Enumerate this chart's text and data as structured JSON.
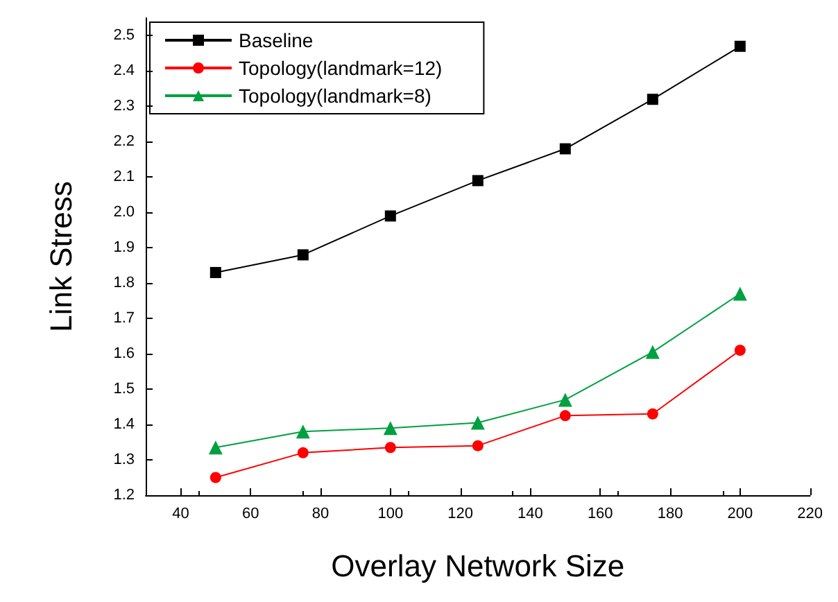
{
  "chart_data": {
    "type": "line",
    "xlabel": "Overlay Network Size",
    "ylabel": "Link Stress",
    "x": [
      50,
      75,
      100,
      125,
      150,
      175,
      200
    ],
    "series": [
      {
        "name": "Baseline",
        "color": "#000000",
        "marker": "square",
        "values": [
          1.83,
          1.88,
          1.99,
          2.09,
          2.18,
          2.32,
          2.47
        ]
      },
      {
        "name": "Topology(landmark=12)",
        "color": "#ff0000",
        "marker": "circle",
        "values": [
          1.25,
          1.32,
          1.335,
          1.34,
          1.425,
          1.43,
          1.61
        ]
      },
      {
        "name": "Topology(landmark=8)",
        "color": "#00a040",
        "marker": "triangle",
        "values": [
          1.335,
          1.38,
          1.39,
          1.405,
          1.47,
          1.605,
          1.77
        ]
      }
    ],
    "xlim": [
      30,
      220
    ],
    "xticks": [
      40,
      60,
      80,
      100,
      120,
      140,
      160,
      180,
      200,
      220
    ],
    "ylim": [
      1.2,
      2.55
    ],
    "yticks": [
      1.2,
      1.3,
      1.4,
      1.5,
      1.6,
      1.7,
      1.8,
      1.9,
      {
        "value": 2,
        "label": "2.0"
      },
      2.1,
      2.2,
      2.3,
      2.4,
      2.5
    ],
    "grid": false,
    "legend": "top left",
    "line_style": "solid"
  }
}
